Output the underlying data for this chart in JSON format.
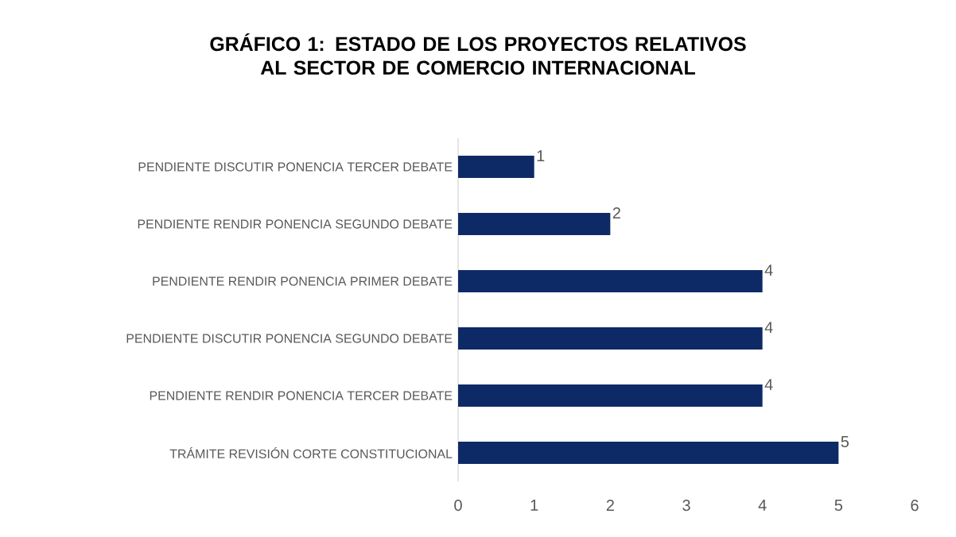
{
  "chart_data": {
    "type": "bar",
    "orientation": "horizontal",
    "title": "GRÁFICO 1: ESTADO DE LOS PROYECTOS RELATIVOS AL SECTOR DE COMERCIO INTERNACIONAL",
    "categories": [
      "PENDIENTE DISCUTIR PONENCIA TERCER DEBATE",
      "PENDIENTE RENDIR PONENCIA SEGUNDO DEBATE",
      "PENDIENTE RENDIR PONENCIA PRIMER DEBATE",
      "PENDIENTE DISCUTIR PONENCIA SEGUNDO DEBATE",
      "PENDIENTE RENDIR PONENCIA TERCER DEBATE",
      "TRÁMITE REVISIÓN CORTE CONSTITUCIONAL"
    ],
    "values": [
      1,
      2,
      4,
      4,
      4,
      5
    ],
    "color": "#0e2a66",
    "data_labels": true,
    "xlim": [
      0,
      6
    ],
    "xticks": [
      0,
      1,
      2,
      3,
      4,
      5,
      6
    ]
  }
}
